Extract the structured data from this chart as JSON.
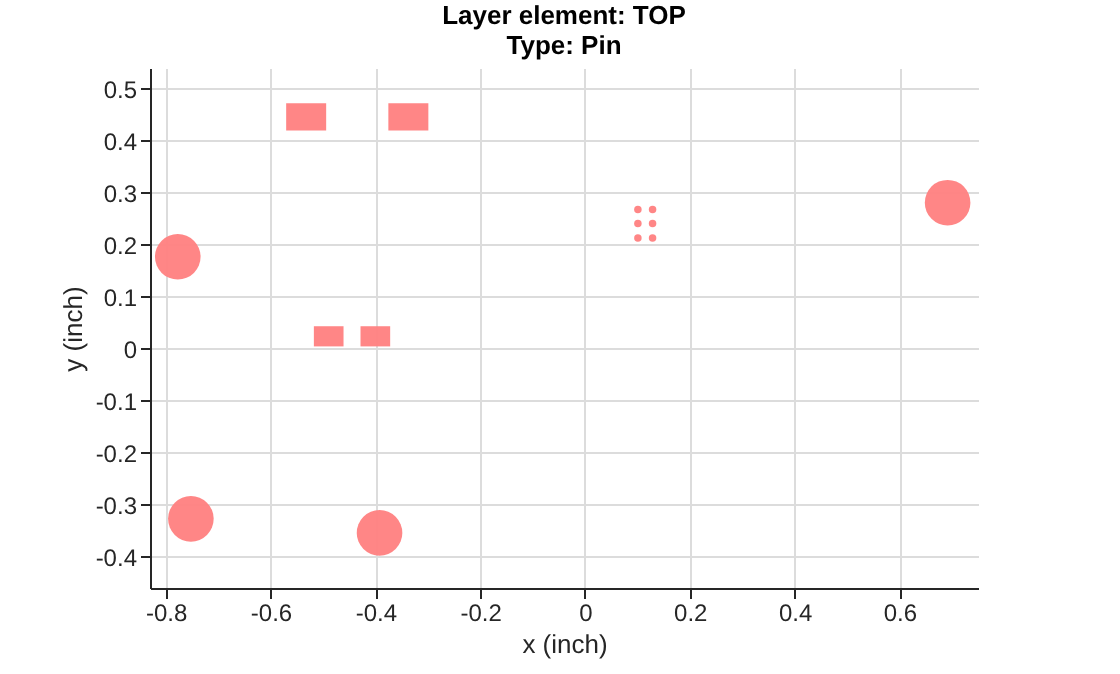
{
  "chart_data": {
    "type": "scatter",
    "title": [
      "Layer element: TOP",
      "Type: Pin"
    ],
    "xlabel": "x (inch)",
    "ylabel": "y (inch)",
    "xlim": [
      -0.83,
      0.75
    ],
    "ylim": [
      -0.46,
      0.54
    ],
    "xticks": [
      -0.8,
      -0.6,
      -0.4,
      -0.2,
      0,
      0.2,
      0.4,
      0.6
    ],
    "yticks": [
      -0.4,
      -0.3,
      -0.2,
      -0.1,
      0,
      0.1,
      0.2,
      0.3,
      0.4,
      0.5
    ],
    "grid": true,
    "legend": false,
    "series": [
      {
        "color": "#ff7f7f",
        "marker": "circle",
        "x": [
          -0.777,
          -0.752,
          -0.392,
          0.692
        ],
        "values": [
          0.177,
          -0.327,
          -0.354,
          0.281
        ]
      },
      {
        "color": "#ff7f7f",
        "marker": "square",
        "x": [
          -0.532,
          -0.337
        ],
        "values": [
          0.446,
          0.446
        ]
      },
      {
        "color": "#ff7f7f",
        "marker": "square",
        "x": [
          -0.489,
          -0.4
        ],
        "values": [
          0.024,
          0.024
        ]
      },
      {
        "color": "#ff7f7f",
        "marker": "circle",
        "x": [
          0.101,
          0.129,
          0.101,
          0.129,
          0.101,
          0.129
        ],
        "values": [
          0.268,
          0.268,
          0.241,
          0.241,
          0.213,
          0.213
        ]
      }
    ]
  }
}
